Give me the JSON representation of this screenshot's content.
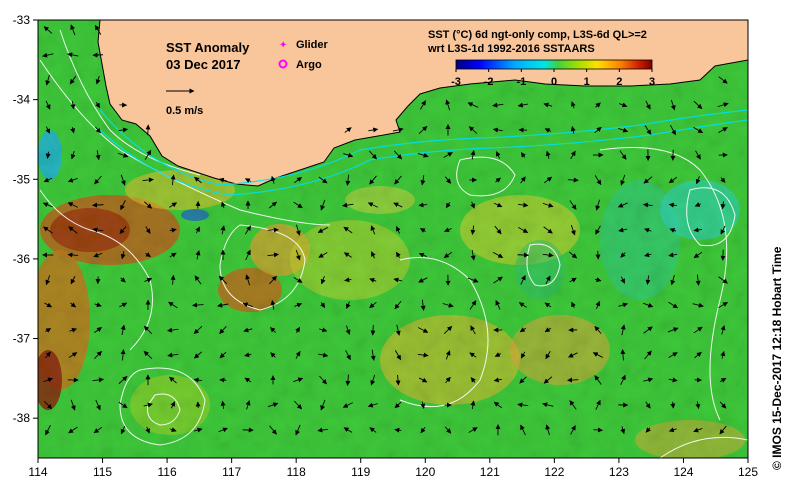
{
  "title": "SST Anomaly",
  "date": "03 Dec 2017",
  "scale_arrow_label": "0.5 m/s",
  "legend": {
    "glider_label": "Glider",
    "argo_label": "Argo",
    "glider_color": "#ff00ff",
    "argo_color": "#ff00ff"
  },
  "product_line1": "SST (°C) 6d ngt-only comp, L3S-6d QL>=2",
  "product_line2": "wrt L3S-1d 1992-2016 SSTAARS",
  "colorbar": {
    "ticks": [
      "-3",
      "-2",
      "-1",
      "0",
      "1",
      "2",
      "3"
    ],
    "min": -3,
    "max": 3,
    "colors": [
      "#00007f",
      "#0000ff",
      "#00aaff",
      "#00e6e6",
      "#40d040",
      "#a0e000",
      "#ffe000",
      "#ff8000",
      "#d02000",
      "#800000"
    ]
  },
  "credit": "©  IMOS 15-Dec-2017 12:18 Hobart Time",
  "land_color": "#f9c59a",
  "chart_data": {
    "type": "heatmap",
    "x_ticks": [
      "114",
      "115",
      "116",
      "117",
      "118",
      "119",
      "120",
      "121",
      "122",
      "123",
      "124",
      "125"
    ],
    "y_ticks": [
      "-33",
      "-34",
      "-35",
      "-36",
      "-37",
      "-38"
    ],
    "xlim": [
      114,
      125
    ],
    "ylim": [
      -38.5,
      -33
    ],
    "grid": false
  }
}
